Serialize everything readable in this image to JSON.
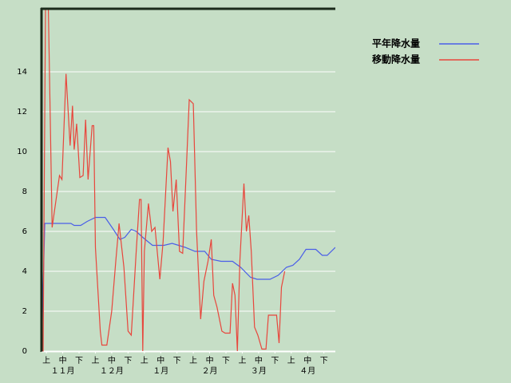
{
  "chart_data": {
    "type": "line",
    "xlim": [
      0,
      180
    ],
    "ylim": [
      0,
      17.2
    ],
    "yticks": [
      0,
      2,
      4,
      6,
      8,
      10,
      12,
      14
    ],
    "xticks": [
      {
        "value": 3,
        "label": "上"
      },
      {
        "value": 13,
        "label": "中"
      },
      {
        "value": 23,
        "label": "下"
      },
      {
        "value": 33,
        "label": "上"
      },
      {
        "value": 43,
        "label": "中"
      },
      {
        "value": 53,
        "label": "下"
      },
      {
        "value": 63,
        "label": "上"
      },
      {
        "value": 73,
        "label": "中"
      },
      {
        "value": 83,
        "label": "下"
      },
      {
        "value": 93,
        "label": "上"
      },
      {
        "value": 103,
        "label": "中"
      },
      {
        "value": 113,
        "label": "下"
      },
      {
        "value": 123,
        "label": "上"
      },
      {
        "value": 133,
        "label": "中"
      },
      {
        "value": 143,
        "label": "下"
      },
      {
        "value": 153,
        "label": "上"
      },
      {
        "value": 163,
        "label": "中"
      },
      {
        "value": 173,
        "label": "下"
      }
    ],
    "xgroups": [
      {
        "value": 13,
        "label": "１１月"
      },
      {
        "value": 43,
        "label": "１２月"
      },
      {
        "value": 73,
        "label": "１月"
      },
      {
        "value": 103,
        "label": "２月"
      },
      {
        "value": 133,
        "label": "３月"
      },
      {
        "value": 163,
        "label": "４月"
      }
    ],
    "grid": true,
    "series": [
      {
        "name": "平年降水量",
        "color": "#4a5ee8",
        "x": [
          0,
          2,
          18,
          20,
          24,
          28,
          33,
          39,
          44,
          48,
          51,
          55,
          58,
          62,
          68,
          75,
          80,
          88,
          94,
          100,
          104,
          110,
          117,
          122,
          128,
          132,
          140,
          145,
          150,
          154,
          158,
          162,
          168,
          172,
          175,
          180
        ],
        "values": [
          0,
          6.4,
          6.4,
          6.3,
          6.3,
          6.5,
          6.7,
          6.7,
          6.1,
          5.6,
          5.7,
          6.1,
          6.0,
          5.7,
          5.3,
          5.3,
          5.4,
          5.2,
          5.0,
          5.0,
          4.6,
          4.5,
          4.5,
          4.2,
          3.7,
          3.6,
          3.6,
          3.8,
          4.2,
          4.3,
          4.6,
          5.1,
          5.1,
          4.8,
          4.8,
          5.2
        ]
      },
      {
        "name": "移動降水量",
        "color": "#e8463c",
        "x": [
          0,
          1,
          2.5,
          4,
          6.5,
          11,
          12.5,
          15,
          17.5,
          19,
          20,
          21.5,
          23.5,
          25.5,
          27,
          28.5,
          31,
          32,
          33,
          36,
          37,
          40,
          43,
          45.5,
          47.5,
          50.5,
          53,
          55,
          58,
          60,
          61,
          62,
          63,
          65.5,
          67.5,
          69.5,
          72.5,
          74.5,
          77.5,
          79,
          80.5,
          82.5,
          84.5,
          86.5,
          88.5,
          90.5,
          93,
          95,
          97.5,
          99.5,
          102,
          104,
          105.5,
          107.5,
          110.5,
          112.5,
          115.5,
          117,
          118.5,
          120,
          121.5,
          124,
          125.5,
          127,
          128.5,
          130.5,
          132.5,
          135,
          137.5,
          139,
          144,
          145.5,
          147,
          149
        ],
        "values": [
          0,
          0,
          18,
          18,
          6.2,
          8.8,
          8.6,
          13.9,
          10.3,
          12.3,
          10.1,
          11.4,
          8.7,
          8.8,
          11.6,
          8.6,
          11.3,
          11.3,
          5.2,
          1,
          0.3,
          0.3,
          2,
          4.5,
          6.4,
          4.2,
          1,
          0.8,
          5,
          7.6,
          7.6,
          0,
          5,
          7.4,
          6,
          6.2,
          3.6,
          5.5,
          10.2,
          9.5,
          7,
          8.6,
          5,
          4.9,
          8.7,
          12.6,
          12.4,
          6,
          1.6,
          3.5,
          4.5,
          5.6,
          2.8,
          2.2,
          1,
          0.9,
          0.9,
          3.4,
          2.8,
          0,
          4.5,
          8.4,
          6,
          6.8,
          5,
          1.2,
          0.8,
          0.1,
          0.1,
          1.8,
          1.8,
          0.4,
          3.2,
          4
        ]
      }
    ]
  }
}
